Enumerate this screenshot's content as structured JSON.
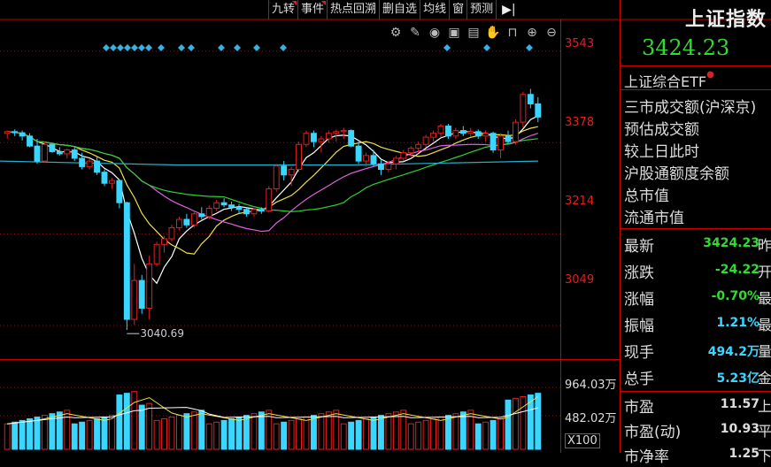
{
  "toolbar": {
    "buttons": [
      "九转",
      "事件",
      "热点回溯",
      "删自选",
      "均线",
      "窗",
      "预测"
    ],
    "exit_icon": "exit-arrow-icon"
  },
  "tool_icons": [
    "settings-icon",
    "pen-icon",
    "eye-icon",
    "briefcase-icon",
    "calculator-icon",
    "hand-icon",
    "lock-icon",
    "zoom-in-icon",
    "zoom-out-icon"
  ],
  "price_axis": [
    "3543",
    "3378",
    "3214",
    "3049"
  ],
  "low_annotation": "3040.69",
  "volume_axis": [
    "964.03万",
    "482.02万",
    "X100"
  ],
  "index": {
    "name": "上证指数",
    "price": "3424.23"
  },
  "etf": {
    "label": "上证综合ETF"
  },
  "info_items": [
    "三市成交额(沪深京)",
    "预估成交额",
    "较上日此时",
    "沪股通额度余额",
    "总市值",
    "流通市值"
  ],
  "quotes": [
    {
      "key": "最新",
      "value": "3424.23",
      "tail": "昨",
      "color": "green"
    },
    {
      "key": "涨跌",
      "value": "-24.22",
      "tail": "开",
      "color": "green"
    },
    {
      "key": "涨幅",
      "value": "-0.70%",
      "tail": "最",
      "color": "green"
    },
    {
      "key": "振幅",
      "value": "1.21%",
      "tail": "最",
      "color": "cyan"
    },
    {
      "key": "现手",
      "value": "494.2万",
      "tail": "量",
      "color": "cyan"
    },
    {
      "key": "总手",
      "value": "5.23亿",
      "tail": "金",
      "color": "cyan"
    },
    {
      "key": "市盈",
      "value": "11.57",
      "tail": "上",
      "color": "white"
    },
    {
      "key": "市盈(动)",
      "value": "10.93",
      "tail": "平",
      "color": "white"
    },
    {
      "key": "市净率",
      "value": "1.25",
      "tail": "下",
      "color": "white"
    }
  ],
  "colors": {
    "up": "#e02020",
    "down": "#3ad6ff",
    "ma5": "#ffffff",
    "ma10": "#f0e040",
    "ma20": "#e060e0",
    "ma60": "#30d030",
    "ma120": "#20b0d0",
    "grid": "#8a1010"
  },
  "chart_data": {
    "type": "candlestick",
    "ylim": [
      2990,
      3600
    ],
    "y_ticks": [
      3543,
      3378,
      3214,
      3049
    ],
    "low_point": 3040.69,
    "candles": [
      [
        3395,
        3400,
        3385,
        3398
      ],
      [
        3398,
        3402,
        3390,
        3396
      ],
      [
        3396,
        3400,
        3382,
        3390
      ],
      [
        3390,
        3395,
        3370,
        3372
      ],
      [
        3372,
        3385,
        3340,
        3345
      ],
      [
        3345,
        3380,
        3342,
        3375
      ],
      [
        3375,
        3378,
        3360,
        3362
      ],
      [
        3362,
        3370,
        3355,
        3358
      ],
      [
        3358,
        3368,
        3350,
        3365
      ],
      [
        3365,
        3370,
        3345,
        3350
      ],
      [
        3350,
        3360,
        3330,
        3335
      ],
      [
        3335,
        3350,
        3330,
        3345
      ],
      [
        3345,
        3352,
        3320,
        3325
      ],
      [
        3325,
        3330,
        3300,
        3305
      ],
      [
        3305,
        3315,
        3295,
        3310
      ],
      [
        3310,
        3312,
        3260,
        3270
      ],
      [
        3270,
        3272,
        3040.69,
        3060
      ],
      [
        3060,
        3160,
        3050,
        3130
      ],
      [
        3130,
        3140,
        3070,
        3080
      ],
      [
        3080,
        3175,
        3060,
        3160
      ],
      [
        3160,
        3200,
        3155,
        3195
      ],
      [
        3195,
        3210,
        3180,
        3205
      ],
      [
        3205,
        3230,
        3200,
        3225
      ],
      [
        3225,
        3245,
        3220,
        3240
      ],
      [
        3240,
        3250,
        3225,
        3230
      ],
      [
        3230,
        3255,
        3225,
        3250
      ],
      [
        3250,
        3262,
        3240,
        3245
      ],
      [
        3245,
        3265,
        3240,
        3260
      ],
      [
        3260,
        3275,
        3255,
        3270
      ],
      [
        3270,
        3278,
        3262,
        3266
      ],
      [
        3266,
        3272,
        3255,
        3262
      ],
      [
        3262,
        3268,
        3250,
        3258
      ],
      [
        3258,
        3262,
        3245,
        3250
      ],
      [
        3250,
        3260,
        3245,
        3258
      ],
      [
        3258,
        3262,
        3250,
        3255
      ],
      [
        3255,
        3300,
        3252,
        3295
      ],
      [
        3295,
        3340,
        3290,
        3336
      ],
      [
        3336,
        3345,
        3310,
        3320
      ],
      [
        3320,
        3335,
        3300,
        3330
      ],
      [
        3330,
        3380,
        3325,
        3375
      ],
      [
        3375,
        3400,
        3370,
        3395
      ],
      [
        3395,
        3400,
        3370,
        3380
      ],
      [
        3380,
        3390,
        3360,
        3385
      ],
      [
        3385,
        3400,
        3378,
        3395
      ],
      [
        3395,
        3402,
        3380,
        3398
      ],
      [
        3398,
        3405,
        3385,
        3400
      ],
      [
        3400,
        3402,
        3370,
        3372
      ],
      [
        3372,
        3380,
        3340,
        3345
      ],
      [
        3345,
        3360,
        3335,
        3355
      ],
      [
        3355,
        3365,
        3335,
        3340
      ],
      [
        3340,
        3348,
        3320,
        3330
      ],
      [
        3330,
        3345,
        3325,
        3340
      ],
      [
        3340,
        3355,
        3330,
        3350
      ],
      [
        3350,
        3365,
        3345,
        3360
      ],
      [
        3360,
        3372,
        3352,
        3368
      ],
      [
        3368,
        3380,
        3360,
        3375
      ],
      [
        3375,
        3392,
        3370,
        3388
      ],
      [
        3388,
        3400,
        3380,
        3395
      ],
      [
        3395,
        3412,
        3388,
        3408
      ],
      [
        3408,
        3412,
        3385,
        3390
      ],
      [
        3390,
        3405,
        3385,
        3400
      ],
      [
        3400,
        3408,
        3390,
        3395
      ],
      [
        3395,
        3405,
        3388,
        3398
      ],
      [
        3398,
        3402,
        3385,
        3390
      ],
      [
        3390,
        3400,
        3380,
        3395
      ],
      [
        3395,
        3398,
        3360,
        3365
      ],
      [
        3365,
        3395,
        3350,
        3390
      ],
      [
        3390,
        3400,
        3375,
        3380
      ],
      [
        3380,
        3420,
        3375,
        3415
      ],
      [
        3415,
        3470,
        3405,
        3465
      ],
      [
        3465,
        3475,
        3440,
        3448
      ],
      [
        3448,
        3460,
        3415,
        3424.23
      ]
    ],
    "volume_ylim": [
      0,
      1000
    ]
  }
}
